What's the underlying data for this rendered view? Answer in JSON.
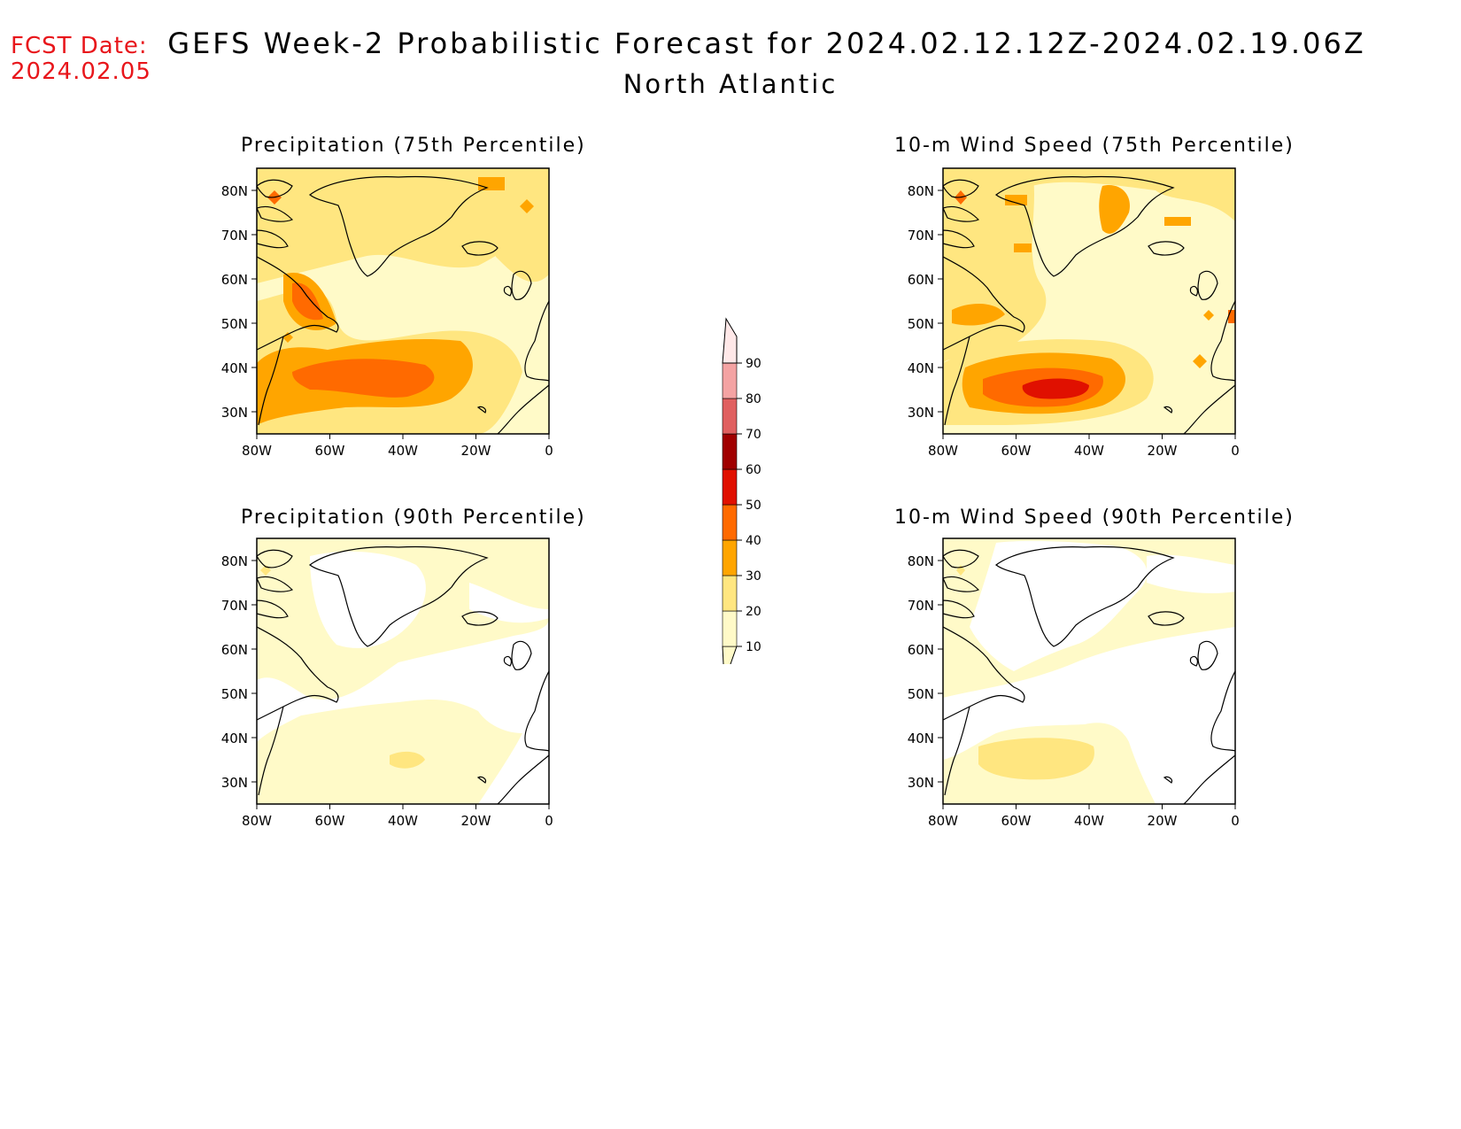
{
  "fcst_date": {
    "line1": "FCST Date:",
    "line2": "2024.02.05"
  },
  "title": "GEFS Week-2 Probabilistic Forecast for 2024.02.12.12Z-2024.02.19.06Z",
  "subtitle": "North Atlantic",
  "colors": {
    "fcst_date": "#e8161b",
    "coastline": "#000000"
  },
  "colorbar": {
    "levels": [
      "10",
      "20",
      "30",
      "40",
      "50",
      "60",
      "70",
      "80",
      "90"
    ],
    "colors": [
      "#fffac8",
      "#ffe680",
      "#ffa500",
      "#ff6a00",
      "#e01000",
      "#a00000",
      "#e06060",
      "#f4a3a3",
      "#ffe8e8"
    ]
  },
  "panels": [
    {
      "id": "precip75",
      "title": "Precipitation (75th Percentile)"
    },
    {
      "id": "wind75",
      "title": "10-m Wind Speed (75th Percentile)"
    },
    {
      "id": "precip90",
      "title": "Precipitation (90th Percentile)"
    },
    {
      "id": "wind90",
      "title": "10-m Wind Speed (90th Percentile)"
    }
  ],
  "axes": {
    "x_ticks": [
      "80W",
      "60W",
      "40W",
      "20W",
      "0"
    ],
    "y_ticks": [
      "80N",
      "70N",
      "60N",
      "50N",
      "40N",
      "30N"
    ],
    "lon_range": [
      -80,
      0
    ],
    "lat_range": [
      25,
      85
    ]
  }
}
